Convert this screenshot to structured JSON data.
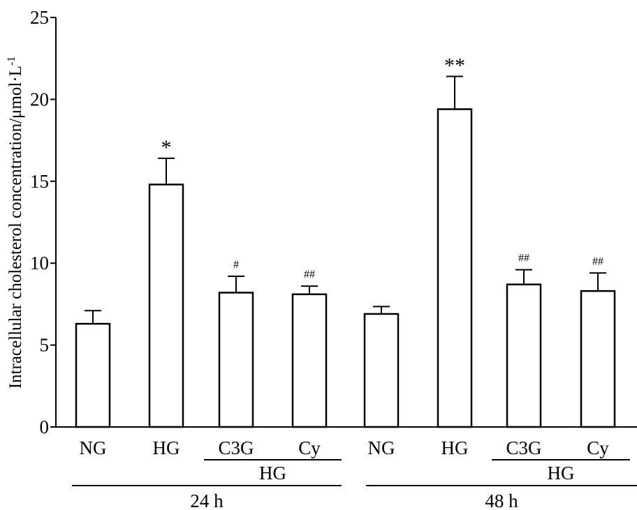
{
  "chart_data": {
    "type": "bar",
    "title": "",
    "xlabel": "",
    "ylabel": "Intracellular cholesterol concentration/μmol·L",
    "ylabel_superscript": "-1",
    "ylim": [
      0,
      25
    ],
    "yticks": [
      0,
      5,
      10,
      15,
      20,
      25
    ],
    "grid": false,
    "legend": "none",
    "bar_fill": "#ffffff",
    "bar_stroke": "#000000",
    "categories": [
      "NG",
      "HG",
      "C3G",
      "Cy",
      "NG",
      "HG",
      "C3G",
      "Cy"
    ],
    "values": [
      6.3,
      14.8,
      8.2,
      8.1,
      6.9,
      19.4,
      8.7,
      8.3
    ],
    "errors": [
      0.8,
      1.6,
      1.0,
      0.5,
      0.45,
      2.0,
      0.9,
      1.1
    ],
    "annotations": [
      "",
      "*",
      "#",
      "##",
      "",
      "**",
      "##",
      "##"
    ],
    "subgroups": [
      {
        "label": "HG",
        "members": [
          2,
          3
        ]
      },
      {
        "label": "HG",
        "members": [
          6,
          7
        ]
      }
    ],
    "groups": [
      {
        "label": "24 h",
        "members": [
          0,
          1,
          2,
          3
        ]
      },
      {
        "label": "48 h",
        "members": [
          4,
          5,
          6,
          7
        ]
      }
    ]
  }
}
